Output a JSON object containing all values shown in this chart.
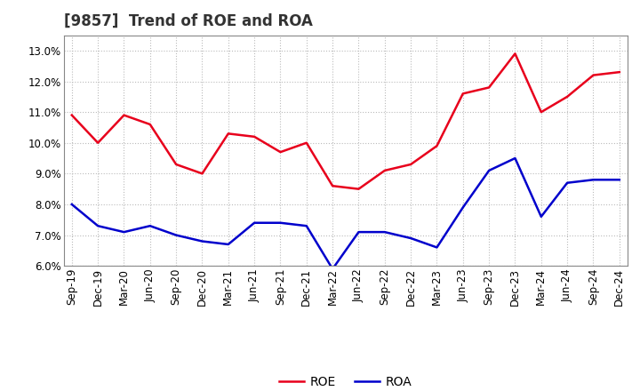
{
  "title": "[9857]  Trend of ROE and ROA",
  "x_labels": [
    "Sep-19",
    "Dec-19",
    "Mar-20",
    "Jun-20",
    "Sep-20",
    "Dec-20",
    "Mar-21",
    "Jun-21",
    "Sep-21",
    "Dec-21",
    "Mar-22",
    "Jun-22",
    "Sep-22",
    "Dec-22",
    "Mar-23",
    "Jun-23",
    "Sep-23",
    "Dec-23",
    "Mar-24",
    "Jun-24",
    "Sep-24",
    "Dec-24"
  ],
  "roe": [
    10.9,
    10.0,
    10.9,
    10.6,
    9.3,
    9.0,
    10.3,
    10.2,
    9.7,
    10.0,
    8.6,
    8.5,
    9.1,
    9.3,
    9.9,
    11.6,
    11.8,
    12.9,
    11.0,
    11.5,
    12.2,
    12.3
  ],
  "roa": [
    8.0,
    7.3,
    7.1,
    7.3,
    7.0,
    6.8,
    6.7,
    7.4,
    7.4,
    7.3,
    5.9,
    7.1,
    7.1,
    6.9,
    6.6,
    7.9,
    9.1,
    9.5,
    7.6,
    8.7,
    8.8,
    8.8
  ],
  "roe_color": "#e8001c",
  "roa_color": "#0000cc",
  "ylim_min": 6.0,
  "ylim_max": 13.5,
  "yticks": [
    6.0,
    7.0,
    8.0,
    9.0,
    10.0,
    11.0,
    12.0,
    13.0
  ],
  "background_color": "#ffffff",
  "grid_color": "#bbbbbb",
  "line_width": 1.8,
  "title_fontsize": 12,
  "legend_fontsize": 10,
  "tick_fontsize": 8.5
}
